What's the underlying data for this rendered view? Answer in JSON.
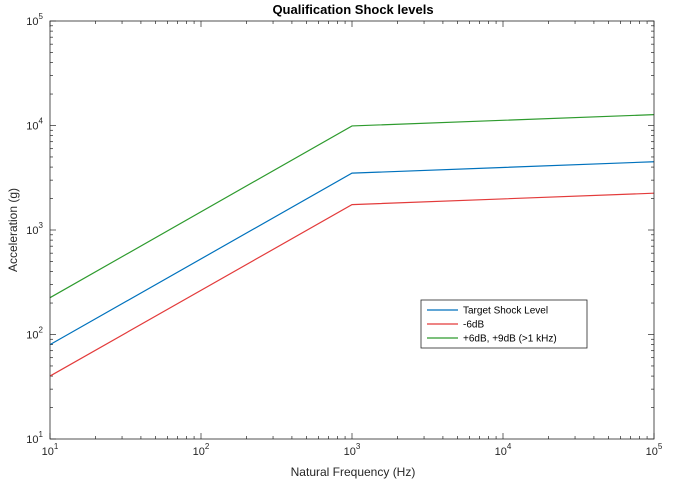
{
  "chart_data": {
    "type": "line",
    "title": "Qualification Shock levels",
    "xlabel": "Natural Frequency (Hz)",
    "ylabel": "Acceleration (g)",
    "xscale": "log",
    "yscale": "log",
    "xlim": [
      10,
      100000
    ],
    "ylim": [
      10,
      100000
    ],
    "x_ticks": [
      {
        "base": "10",
        "exp": "1",
        "value": 10
      },
      {
        "base": "10",
        "exp": "2",
        "value": 100
      },
      {
        "base": "10",
        "exp": "3",
        "value": 1000
      },
      {
        "base": "10",
        "exp": "4",
        "value": 10000
      },
      {
        "base": "10",
        "exp": "5",
        "value": 100000
      }
    ],
    "y_ticks": [
      {
        "base": "10",
        "exp": "1",
        "value": 10
      },
      {
        "base": "10",
        "exp": "2",
        "value": 100
      },
      {
        "base": "10",
        "exp": "3",
        "value": 1000
      },
      {
        "base": "10",
        "exp": "4",
        "value": 10000
      },
      {
        "base": "10",
        "exp": "5",
        "value": 100000
      }
    ],
    "grid": false,
    "legend_position": "inside-lower-right",
    "series": [
      {
        "name": "Target Shock Level",
        "color": "#0072BD",
        "x": [
          10,
          1000,
          100000
        ],
        "y": [
          80,
          3500,
          4500
        ]
      },
      {
        "name": "-6dB",
        "color": "#E33B3B",
        "x": [
          10,
          1000,
          100000
        ],
        "y": [
          40,
          1750,
          2250
        ]
      },
      {
        "name": "+6dB, +9dB (>1 kHz)",
        "color": "#2E9B2E",
        "x": [
          10,
          1000,
          100000
        ],
        "y": [
          225,
          9900,
          12700
        ]
      }
    ]
  }
}
